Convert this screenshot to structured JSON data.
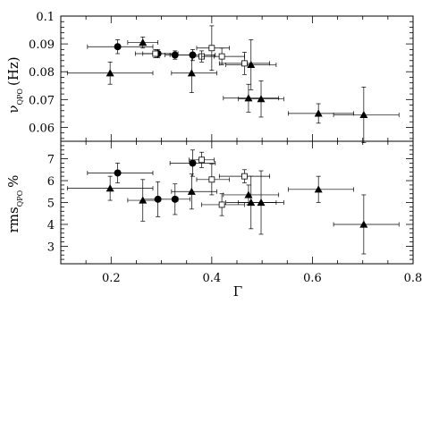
{
  "chart_data": [
    {
      "type": "scatter",
      "panel": "top",
      "ylabel": "ν",
      "ylabel_sub": "QPO",
      "ylabel_unit": "(Hz)",
      "ylim": [
        0.055,
        0.1
      ],
      "yticks": [
        0.06,
        0.07,
        0.08,
        0.09,
        0.1
      ],
      "ytick_labels": [
        "0.06",
        "0.07",
        "0.08",
        "0.09",
        "0.1"
      ],
      "xlim": [
        0.1,
        0.8
      ],
      "xticks": [
        0.2,
        0.4,
        0.6,
        0.8
      ],
      "series": [
        {
          "marker": "circle",
          "points": [
            {
              "x": 0.213,
              "y": 0.089,
              "xerr": [
                0.06,
                0.07
              ],
              "yerr": 0.0025
            },
            {
              "x": 0.293,
              "y": 0.0865,
              "xerr": [
                0.03,
                0.04
              ],
              "yerr": 0.0015
            },
            {
              "x": 0.327,
              "y": 0.086,
              "xerr": [
                0.02,
                0.03
              ],
              "yerr": 0.0015
            },
            {
              "x": 0.362,
              "y": 0.086,
              "xerr": [
                0.045,
                0.045
              ],
              "yerr": 0.002
            }
          ]
        },
        {
          "marker": "triangle",
          "points": [
            {
              "x": 0.198,
              "y": 0.0795,
              "xerr": [
                0.085,
                0.085
              ],
              "yerr": 0.004
            },
            {
              "x": 0.263,
              "y": 0.0905,
              "xerr": [
                0.03,
                0.03
              ],
              "yerr": 0.002
            },
            {
              "x": 0.36,
              "y": 0.0795,
              "xerr": [
                0.04,
                0.05
              ],
              "yerr": 0.007
            },
            {
              "x": 0.478,
              "y": 0.0825,
              "xerr": [
                0.05,
                0.05
              ],
              "yerr": 0.009
            },
            {
              "x": 0.473,
              "y": 0.0705,
              "xerr": [
                0.05,
                0.06
              ],
              "yerr": 0.005
            },
            {
              "x": 0.498,
              "y": 0.0702,
              "xerr": [
                0.045,
                0.045
              ],
              "yerr": 0.0065
            },
            {
              "x": 0.612,
              "y": 0.065,
              "xerr": [
                0.06,
                0.07
              ],
              "yerr": 0.0035
            },
            {
              "x": 0.702,
              "y": 0.0645,
              "xerr": [
                0.06,
                0.07
              ],
              "yerr": 0.01
            }
          ]
        },
        {
          "marker": "open-square",
          "points": [
            {
              "x": 0.288,
              "y": 0.0865,
              "xerr": [
                0.04,
                0.04
              ],
              "yerr": 0.0015
            },
            {
              "x": 0.38,
              "y": 0.0855,
              "xerr": [
                0.02,
                0.025
              ],
              "yerr": 0.002
            },
            {
              "x": 0.4,
              "y": 0.0885,
              "xerr": [
                0.03,
                0.035
              ],
              "yerr": 0.008
            },
            {
              "x": 0.42,
              "y": 0.0855,
              "xerr": [
                0.04,
                0.045
              ],
              "yerr": 0.003
            },
            {
              "x": 0.465,
              "y": 0.083,
              "xerr": [
                0.05,
                0.05
              ],
              "yerr": 0.004
            }
          ]
        }
      ]
    },
    {
      "type": "scatter",
      "panel": "bottom",
      "ylabel": "rms",
      "ylabel_sub": "QPO",
      "ylabel_unit": "%",
      "xlabel": "Γ",
      "ylim": [
        2.2,
        7.8
      ],
      "yticks": [
        3,
        4,
        5,
        6,
        7
      ],
      "ytick_labels": [
        "3",
        "4",
        "5",
        "6",
        "7"
      ],
      "xlim": [
        0.1,
        0.8
      ],
      "xticks": [
        0.2,
        0.4,
        0.6,
        0.8
      ],
      "xtick_labels": [
        "0.2",
        "0.4",
        "0.6",
        "0.8"
      ],
      "series": [
        {
          "marker": "circle",
          "points": [
            {
              "x": 0.213,
              "y": 6.35,
              "xerr": [
                0.06,
                0.07
              ],
              "yerr": 0.45
            },
            {
              "x": 0.293,
              "y": 5.15,
              "xerr": [
                0.03,
                0.04
              ],
              "yerr": 0.8
            },
            {
              "x": 0.327,
              "y": 5.15,
              "xerr": [
                0.03,
                0.03
              ],
              "yerr": 0.7
            },
            {
              "x": 0.362,
              "y": 6.8,
              "xerr": [
                0.045,
                0.045
              ],
              "yerr": 0.6
            }
          ]
        },
        {
          "marker": "triangle",
          "points": [
            {
              "x": 0.198,
              "y": 5.65,
              "xerr": [
                0.085,
                0.085
              ],
              "yerr": 0.55
            },
            {
              "x": 0.263,
              "y": 5.1,
              "xerr": [
                0.03,
                0.03
              ],
              "yerr": 0.95
            },
            {
              "x": 0.36,
              "y": 5.5,
              "xerr": [
                0.04,
                0.05
              ],
              "yerr": 0.8
            },
            {
              "x": 0.478,
              "y": 5.0,
              "xerr": [
                0.05,
                0.05
              ],
              "yerr": 1.2
            },
            {
              "x": 0.473,
              "y": 5.35,
              "xerr": [
                0.05,
                0.06
              ],
              "yerr": 0.45
            },
            {
              "x": 0.498,
              "y": 5.0,
              "xerr": [
                0.045,
                0.045
              ],
              "yerr": 1.45
            },
            {
              "x": 0.612,
              "y": 5.6,
              "xerr": [
                0.06,
                0.07
              ],
              "yerr": 0.6
            },
            {
              "x": 0.702,
              "y": 4.0,
              "xerr": [
                0.06,
                0.07
              ],
              "yerr": 1.35
            }
          ]
        },
        {
          "marker": "open-square",
          "points": [
            {
              "x": 0.38,
              "y": 6.95,
              "xerr": [
                0.025,
                0.025
              ],
              "yerr": 0.35
            },
            {
              "x": 0.4,
              "y": 6.05,
              "xerr": [
                0.03,
                0.035
              ],
              "yerr": 0.7
            },
            {
              "x": 0.42,
              "y": 4.9,
              "xerr": [
                0.04,
                0.045
              ],
              "yerr": 0.5
            },
            {
              "x": 0.465,
              "y": 6.2,
              "xerr": [
                0.05,
                0.05
              ],
              "yerr": 0.3
            }
          ]
        }
      ]
    }
  ]
}
